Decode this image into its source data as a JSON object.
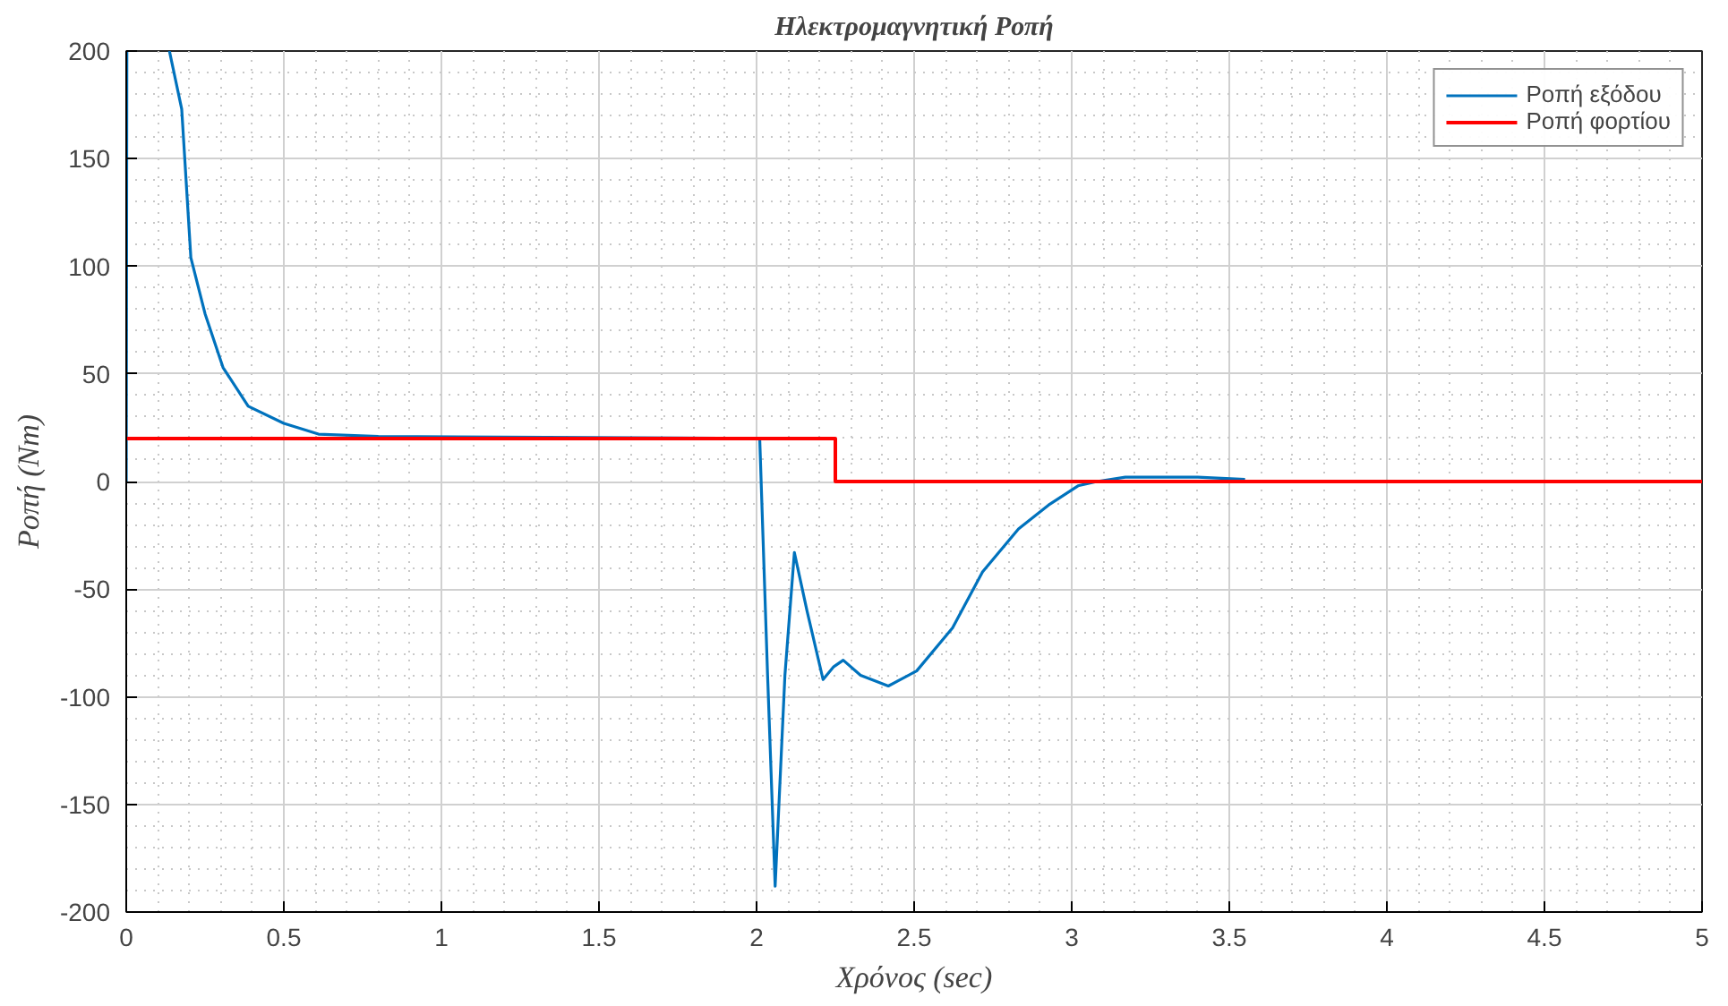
{
  "chart_data": {
    "type": "line",
    "title": "Ηλεκτρομαγνητική Ροπή",
    "xlabel": "Χρόνος (sec)",
    "ylabel": "Ροπή (Nm)",
    "xlim": [
      0,
      5
    ],
    "ylim": [
      -200,
      200
    ],
    "xticks": [
      0,
      0.5,
      1,
      1.5,
      2,
      2.5,
      3,
      3.5,
      4,
      4.5,
      5
    ],
    "yticks": [
      -200,
      -150,
      -100,
      -50,
      0,
      50,
      100,
      150,
      200
    ],
    "grid": true,
    "legend": "top right",
    "line_style": "solid",
    "marker": "none",
    "series": [
      {
        "name": "Ροπή εξόδου",
        "color": "#0072bd",
        "x": [
          0,
          0.002,
          null,
          0.137,
          0.176,
          0.205,
          0.25,
          0.307,
          0.387,
          0.5,
          0.61,
          0.8,
          2.0,
          2.01,
          2.035,
          2.059,
          2.09,
          2.12,
          2.16,
          2.211,
          2.245,
          2.275,
          2.33,
          2.418,
          2.508,
          2.622,
          2.717,
          2.831,
          2.926,
          3.02,
          3.08,
          3.17,
          3.27,
          3.4,
          3.55
        ],
        "values": [
          0,
          200,
          null,
          200,
          173,
          104,
          78,
          53,
          35,
          27,
          22,
          21,
          20,
          20,
          -90,
          -188,
          -90,
          -33,
          -60,
          -92,
          -86,
          -83,
          -90,
          -95,
          -88,
          -68,
          -42,
          -22,
          -11,
          -2,
          0,
          2,
          2,
          2,
          1
        ]
      },
      {
        "name": "Ροπή φορτίου",
        "color": "#ff0000",
        "x": [
          0,
          2.25,
          2.25,
          5
        ],
        "values": [
          20,
          20,
          0,
          0
        ]
      }
    ]
  }
}
